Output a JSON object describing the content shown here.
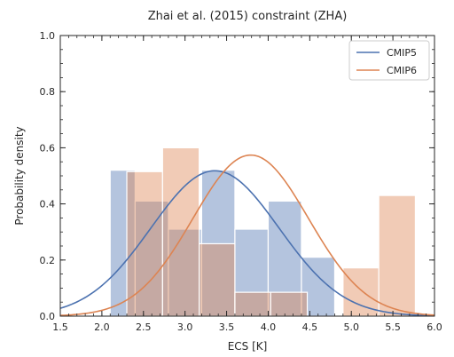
{
  "chart_data": {
    "type": "bar",
    "title": "Zhai et al. (2015) constraint (ZHA)",
    "xlabel": "ECS [K]",
    "ylabel": "Probability density",
    "xlim": [
      1.5,
      6.0
    ],
    "ylim": [
      0.0,
      1.0
    ],
    "xticks": [
      1.5,
      2.0,
      2.5,
      3.0,
      3.5,
      4.0,
      4.5,
      5.0,
      5.5,
      6.0
    ],
    "yticks": [
      0.0,
      0.2,
      0.4,
      0.6,
      0.8,
      1.0
    ],
    "grid": false,
    "legend_position": "top-right",
    "series": [
      {
        "name": "CMIP5",
        "color": "#4c72b0",
        "histogram": {
          "bin_edges": [
            2.1,
            2.4,
            2.8,
            3.2,
            3.6,
            4.0,
            4.4,
            4.8
          ],
          "densities": [
            0.52,
            0.41,
            0.31,
            0.52,
            0.31,
            0.41,
            0.21
          ]
        },
        "curve": {
          "type": "normal",
          "mean": 3.36,
          "std": 0.77
        }
      },
      {
        "name": "CMIP6",
        "color": "#dd8452",
        "histogram": {
          "bin_edges": [
            2.3,
            2.73,
            3.17,
            3.6,
            4.03,
            4.47,
            4.9,
            5.33,
            5.77
          ],
          "densities": [
            0.515,
            0.6,
            0.258,
            0.085,
            0.085,
            0.0,
            0.172,
            0.43
          ]
        },
        "curve": {
          "type": "normal",
          "mean": 3.79,
          "std": 0.695
        }
      }
    ]
  }
}
